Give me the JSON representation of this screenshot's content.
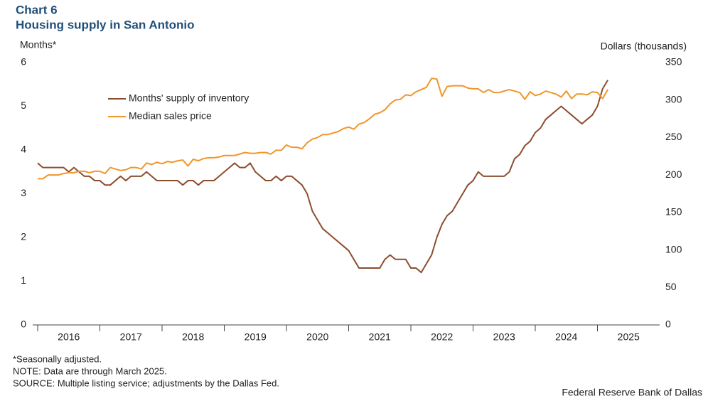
{
  "chart_data": {
    "type": "line",
    "title": "Chart 6",
    "subtitle": "Housing supply in San Antonio",
    "y_label": "Months*",
    "y2_label": "Dollars (thousands)",
    "notes": [
      "*Seasonally adjusted.",
      "NOTE: Data are through March 2025.",
      "SOURCE: Multiple  listing service; adjustments by the Dallas Fed."
    ],
    "credit": "Federal Reserve Bank of Dallas",
    "xlim": [
      2015.92,
      2026
    ],
    "xticks": [
      2016,
      2017,
      2018,
      2019,
      2020,
      2021,
      2022,
      2023,
      2024,
      2025
    ],
    "ylim": [
      0,
      6
    ],
    "yticks": [
      0,
      1,
      2,
      3,
      4,
      5,
      6
    ],
    "y2lim": [
      0,
      350
    ],
    "y2ticks": [
      0,
      50,
      100,
      150,
      200,
      250,
      300,
      350
    ],
    "x": [
      2016,
      2016.083,
      2016.167,
      2016.25,
      2016.333,
      2016.417,
      2016.5,
      2016.583,
      2016.667,
      2016.75,
      2016.833,
      2016.917,
      2017,
      2017.083,
      2017.167,
      2017.25,
      2017.333,
      2017.417,
      2017.5,
      2017.583,
      2017.667,
      2017.75,
      2017.833,
      2017.917,
      2018,
      2018.083,
      2018.167,
      2018.25,
      2018.333,
      2018.417,
      2018.5,
      2018.583,
      2018.667,
      2018.75,
      2018.833,
      2018.917,
      2019,
      2019.083,
      2019.167,
      2019.25,
      2019.333,
      2019.417,
      2019.5,
      2019.583,
      2019.667,
      2019.75,
      2019.833,
      2019.917,
      2020,
      2020.083,
      2020.167,
      2020.25,
      2020.333,
      2020.417,
      2020.5,
      2020.583,
      2020.667,
      2020.75,
      2020.833,
      2020.917,
      2021,
      2021.083,
      2021.167,
      2021.25,
      2021.333,
      2021.417,
      2021.5,
      2021.583,
      2021.667,
      2021.75,
      2021.833,
      2021.917,
      2022,
      2022.083,
      2022.167,
      2022.25,
      2022.333,
      2022.417,
      2022.5,
      2022.583,
      2022.667,
      2022.75,
      2022.833,
      2022.917,
      2023,
      2023.083,
      2023.167,
      2023.25,
      2023.333,
      2023.417,
      2023.5,
      2023.583,
      2023.667,
      2023.75,
      2023.833,
      2023.917,
      2024,
      2024.083,
      2024.167,
      2024.25,
      2024.333,
      2024.417,
      2024.5,
      2024.583,
      2024.667,
      2024.75,
      2024.833,
      2024.917,
      2025,
      2025.083,
      2025.167
    ],
    "series": [
      {
        "name": "Months' supply  of inventory",
        "color": "#8b4d2e",
        "axis": "y",
        "values": [
          3.7,
          3.6,
          3.6,
          3.6,
          3.6,
          3.6,
          3.5,
          3.6,
          3.5,
          3.4,
          3.4,
          3.3,
          3.3,
          3.2,
          3.2,
          3.3,
          3.4,
          3.3,
          3.4,
          3.4,
          3.4,
          3.5,
          3.4,
          3.3,
          3.3,
          3.3,
          3.3,
          3.3,
          3.2,
          3.3,
          3.3,
          3.2,
          3.3,
          3.3,
          3.3,
          3.4,
          3.5,
          3.6,
          3.7,
          3.6,
          3.6,
          3.7,
          3.5,
          3.4,
          3.3,
          3.3,
          3.4,
          3.3,
          3.4,
          3.4,
          3.3,
          3.2,
          3.0,
          2.6,
          2.4,
          2.2,
          2.1,
          2.0,
          1.9,
          1.8,
          1.7,
          1.5,
          1.3,
          1.3,
          1.3,
          1.3,
          1.3,
          1.5,
          1.6,
          1.5,
          1.5,
          1.5,
          1.3,
          1.3,
          1.2,
          1.4,
          1.6,
          2.0,
          2.3,
          2.5,
          2.6,
          2.8,
          3.0,
          3.2,
          3.3,
          3.5,
          3.4,
          3.4,
          3.4,
          3.4,
          3.4,
          3.5,
          3.8,
          3.9,
          4.1,
          4.2,
          4.4,
          4.5,
          4.7,
          4.8,
          4.9,
          5.0,
          4.9,
          4.8,
          4.7,
          4.6,
          4.7,
          4.8,
          5.0,
          5.4,
          5.6
        ]
      },
      {
        "name": "Median sales price",
        "color": "#f0962a",
        "axis": "y2",
        "values": [
          195,
          195,
          200,
          200,
          200,
          202,
          203,
          203,
          205,
          205,
          203,
          205,
          205,
          202,
          210,
          208,
          206,
          207,
          210,
          210,
          208,
          216,
          214,
          217,
          215,
          218,
          217,
          219,
          220,
          212,
          221,
          219,
          222,
          223,
          223,
          224,
          226,
          226,
          226,
          228,
          230,
          229,
          229,
          230,
          230,
          228,
          233,
          233,
          240,
          237,
          237,
          235,
          243,
          248,
          250,
          254,
          254,
          256,
          258,
          262,
          264,
          261,
          268,
          270,
          275,
          281,
          283,
          287,
          295,
          300,
          301,
          307,
          306,
          311,
          314,
          317,
          329,
          328,
          305,
          318,
          319,
          319,
          319,
          316,
          315,
          315,
          310,
          314,
          310,
          310,
          312,
          314,
          312,
          310,
          301,
          311,
          306,
          308,
          312,
          310,
          308,
          304,
          312,
          302,
          308,
          308,
          307,
          311,
          310,
          302,
          314
        ]
      }
    ]
  }
}
